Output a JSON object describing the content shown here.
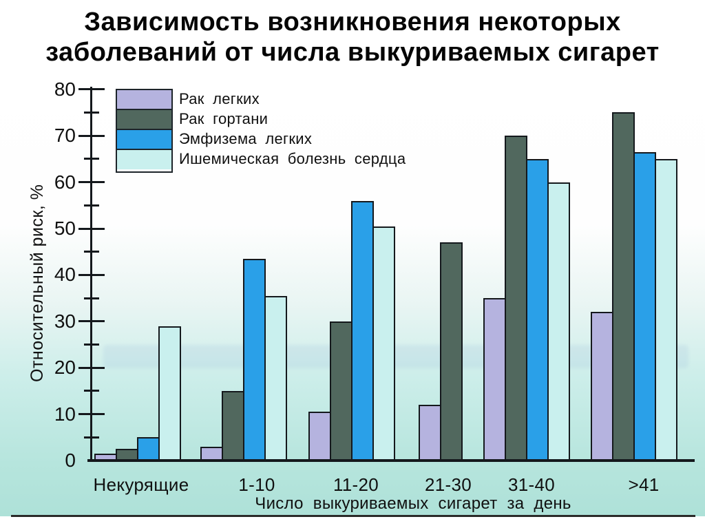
{
  "title": {
    "line1": "Зависимость возникновения некоторых",
    "line2": "заболеваний от числа выкуриваемых сигарет"
  },
  "chart_data": {
    "type": "bar",
    "title": "Зависимость возникновения некоторых заболеваний от числа выкуриваемых сигарет",
    "categories": [
      "Некурящие",
      "1-10",
      "11-20",
      "21-30",
      "31-40",
      ">41"
    ],
    "series": [
      {
        "name": "Рак легких",
        "color": "#b5b3df",
        "values": [
          1.5,
          3,
          10.5,
          12,
          35,
          32
        ]
      },
      {
        "name": "Рак гортани",
        "color": "#51685e",
        "values": [
          2.5,
          15,
          30,
          47,
          70,
          75
        ]
      },
      {
        "name": "Эмфизема легких",
        "color": "#2aa0e8",
        "values": [
          5,
          43.5,
          56,
          null,
          65,
          66.5
        ]
      },
      {
        "name": "Ишемическая болезнь сердца",
        "color": "#c9f0ee",
        "values": [
          29,
          35.5,
          50.5,
          null,
          60,
          65
        ]
      }
    ],
    "xlabel": "Число выкуриваемых сигарет за день",
    "ylabel": "Относительный риск, %",
    "ylim": [
      0,
      80
    ],
    "yticks": [
      0,
      10,
      20,
      30,
      40,
      50,
      60,
      70,
      80
    ],
    "minor_ytick_step": 5,
    "legend_position": "upper-left",
    "grid": false
  }
}
